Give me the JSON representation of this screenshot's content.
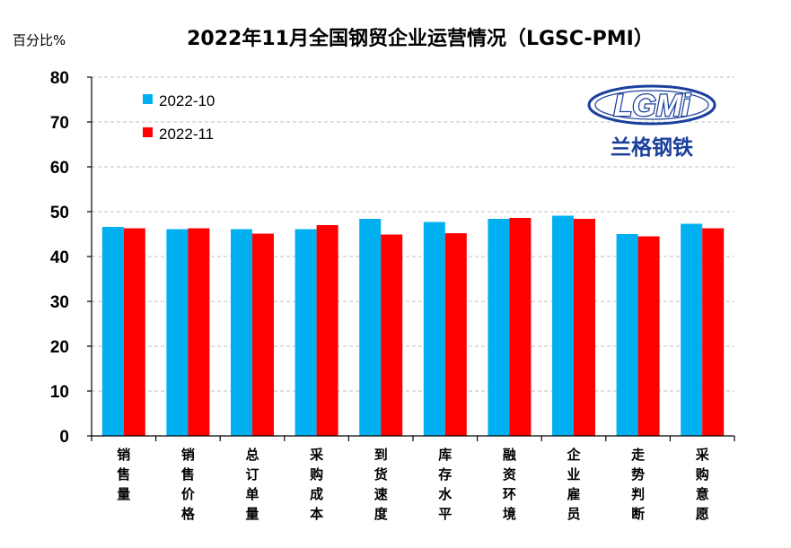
{
  "chart_data": {
    "type": "bar",
    "title": "2022年11月全国钢贸企业运营情况（LGSC-PMI）",
    "ylabel": "百分比%",
    "ylim": [
      0,
      80
    ],
    "yticks": [
      0,
      10,
      20,
      30,
      40,
      50,
      60,
      70,
      80
    ],
    "grid": true,
    "legend_position": "top-left",
    "categories": [
      "销售量",
      "销售价格",
      "总订单量",
      "采购成本",
      "到货速度",
      "库存水平",
      "融资环境",
      "企业雇员",
      "走势判断",
      "采购意愿"
    ],
    "series": [
      {
        "name": "2022-10",
        "color": "#00B0F0",
        "values": [
          46.6,
          46.1,
          46.1,
          46.1,
          48.4,
          47.7,
          48.4,
          49.1,
          45.0,
          47.3
        ]
      },
      {
        "name": "2022-11",
        "color": "#FF0000",
        "values": [
          46.3,
          46.3,
          45.1,
          47.0,
          44.9,
          45.2,
          48.6,
          48.4,
          44.5,
          46.3
        ]
      }
    ]
  },
  "logo": {
    "wordmark": "LGMi",
    "chinese": "兰格钢铁",
    "color": "#1a3f9c"
  }
}
